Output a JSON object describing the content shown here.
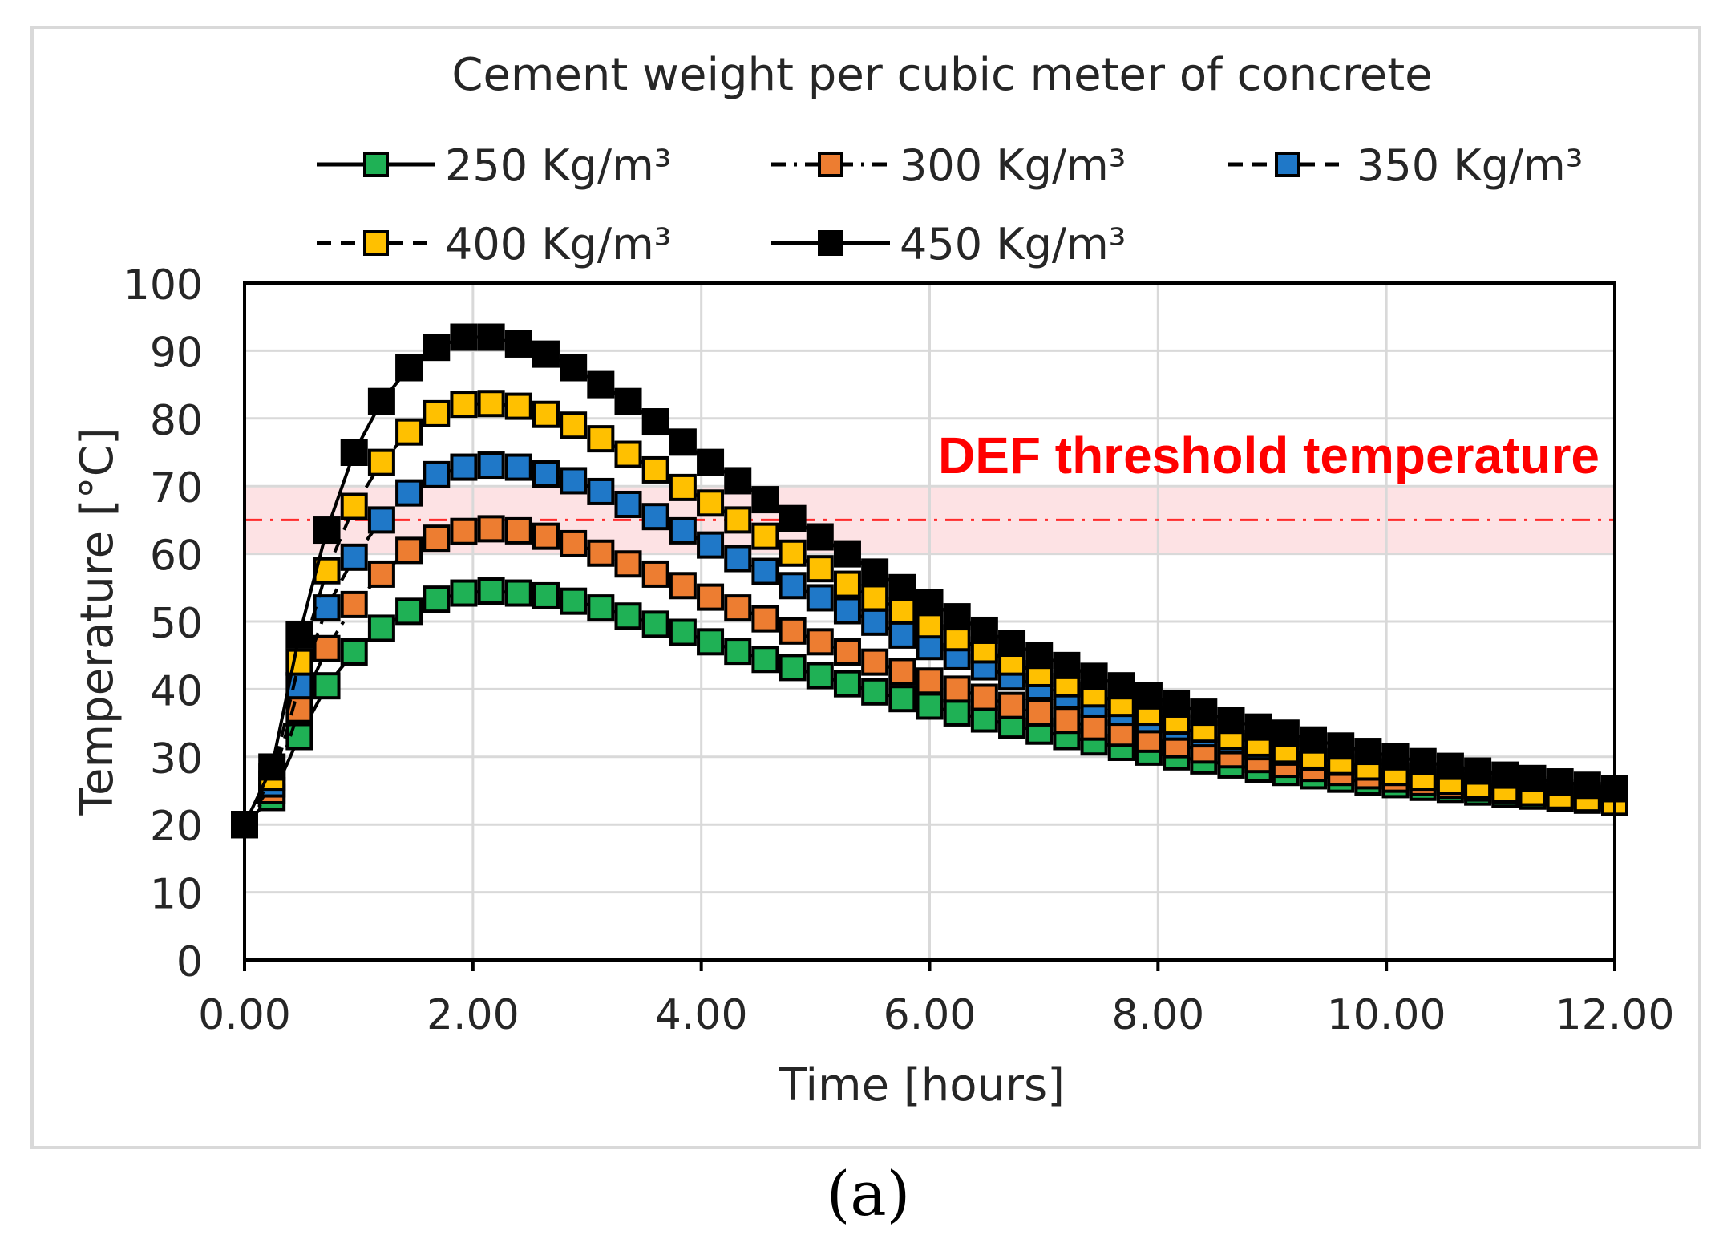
{
  "chart_data": {
    "type": "line",
    "title": "Cement weight per cubic meter of concrete",
    "xlabel": "Time [hours]",
    "ylabel": "Temperature [°C]",
    "xlim": [
      0,
      12
    ],
    "ylim": [
      0,
      100
    ],
    "x_ticks": [
      "0.00",
      "2.00",
      "4.00",
      "6.00",
      "8.00",
      "10.00",
      "12.00"
    ],
    "y_ticks": [
      "0",
      "10",
      "20",
      "30",
      "40",
      "50",
      "60",
      "70",
      "80",
      "90",
      "100"
    ],
    "grid": true,
    "legend_position": "top",
    "threshold": {
      "label": "DEF threshold temperature",
      "value": 65,
      "band": [
        60,
        70
      ],
      "color": "#ff0000",
      "band_color": "#fde2e4"
    },
    "x": [
      0,
      0.24,
      0.48,
      0.72,
      0.96,
      1.2,
      1.44,
      1.68,
      1.92,
      2.16,
      2.4,
      2.64,
      2.88,
      3.12,
      3.36,
      3.6,
      3.84,
      4.08,
      4.32,
      4.56,
      4.8,
      5.04,
      5.28,
      5.52,
      5.76,
      6.0,
      6.24,
      6.48,
      6.72,
      6.96,
      7.2,
      7.44,
      7.68,
      7.92,
      8.16,
      8.4,
      8.64,
      8.88,
      9.12,
      9.36,
      9.6,
      9.84,
      10.08,
      10.32,
      10.56,
      10.8,
      11.04,
      11.28,
      11.52,
      11.76,
      12.0
    ],
    "series": [
      {
        "name": "250 Kg/m³",
        "color": "#1fb155",
        "line_style": "solid",
        "values": [
          20,
          24,
          33,
          40.5,
          45.5,
          49,
          51.5,
          53.3,
          54.2,
          54.5,
          54.2,
          53.8,
          53.0,
          52.0,
          50.8,
          49.6,
          48.4,
          47.0,
          45.6,
          44.4,
          43.2,
          42.0,
          40.8,
          39.6,
          38.6,
          37.5,
          36.5,
          35.6,
          34.7,
          33.8,
          33.0,
          32.2,
          31.4,
          30.7,
          30.0,
          29.4,
          28.8,
          28.2,
          27.7,
          27.2,
          26.7,
          26.3,
          25.9,
          25.5,
          25.2,
          24.8,
          24.5,
          24.2,
          23.9,
          23.6,
          23.4
        ]
      },
      {
        "name": "300 Kg/m³",
        "color": "#ed7d31",
        "line_style": "dash-dot",
        "values": [
          20,
          25,
          37,
          46,
          52.5,
          57,
          60.5,
          62.3,
          63.3,
          63.7,
          63.4,
          62.6,
          61.5,
          60.1,
          58.5,
          57.0,
          55.3,
          53.6,
          52.0,
          50.4,
          48.6,
          47.0,
          45.5,
          44.0,
          42.6,
          41.2,
          40.0,
          38.8,
          37.6,
          36.5,
          35.4,
          34.4,
          33.5,
          32.6,
          31.8,
          31.0,
          30.3,
          29.6,
          28.9,
          28.3,
          27.7,
          27.2,
          26.7,
          26.2,
          25.8,
          25.4,
          25.0,
          24.7,
          24.3,
          24.0,
          23.7
        ]
      },
      {
        "name": "350 Kg/m³",
        "color": "#1f78c8",
        "line_style": "dashed",
        "values": [
          20,
          26,
          40.5,
          52,
          59.5,
          65,
          69,
          71.7,
          72.8,
          73.1,
          72.8,
          71.8,
          70.8,
          69.2,
          67.3,
          65.5,
          63.4,
          61.3,
          59.3,
          57.4,
          55.3,
          53.5,
          51.6,
          49.9,
          48.0,
          46.3,
          44.8,
          43.3,
          41.8,
          40.4,
          39.1,
          37.8,
          36.6,
          35.5,
          34.4,
          33.4,
          32.4,
          31.5,
          30.7,
          29.9,
          29.2,
          28.5,
          27.8,
          27.2,
          26.6,
          26.1,
          25.6,
          25.1,
          24.7,
          24.3,
          23.9
        ]
      },
      {
        "name": "400 Kg/m³",
        "color": "#ffc000",
        "line_style": "dashed",
        "values": [
          20,
          27,
          44,
          57.5,
          67,
          73.5,
          78,
          80.7,
          82.1,
          82.2,
          81.8,
          80.6,
          79.0,
          77.0,
          74.7,
          72.4,
          69.8,
          67.5,
          65.0,
          62.6,
          60.1,
          57.8,
          55.5,
          53.5,
          51.6,
          49.5,
          47.6,
          45.8,
          44.0,
          42.3,
          40.8,
          39.3,
          37.9,
          36.6,
          35.3,
          34.1,
          33.0,
          32.0,
          31.0,
          30.1,
          29.3,
          28.5,
          27.7,
          27.0,
          26.4,
          25.8,
          25.2,
          24.7,
          24.2,
          23.8,
          23.3
        ]
      },
      {
        "name": "450 Kg/m³",
        "color": "#000000",
        "line_style": "solid",
        "values": [
          20,
          28.5,
          48,
          63.5,
          75,
          82.5,
          87.5,
          90.5,
          92.0,
          92.0,
          91.0,
          89.5,
          87.5,
          85.0,
          82.5,
          79.5,
          76.5,
          73.5,
          70.8,
          68.0,
          65.2,
          62.5,
          60.0,
          57.3,
          55.0,
          52.8,
          50.7,
          48.7,
          46.8,
          45.0,
          43.5,
          41.9,
          40.5,
          39.0,
          37.8,
          36.6,
          35.4,
          34.4,
          33.5,
          32.5,
          31.6,
          30.8,
          30.0,
          29.3,
          28.6,
          27.9,
          27.3,
          26.8,
          26.3,
          25.8,
          25.3
        ]
      }
    ]
  },
  "caption": "(a)"
}
